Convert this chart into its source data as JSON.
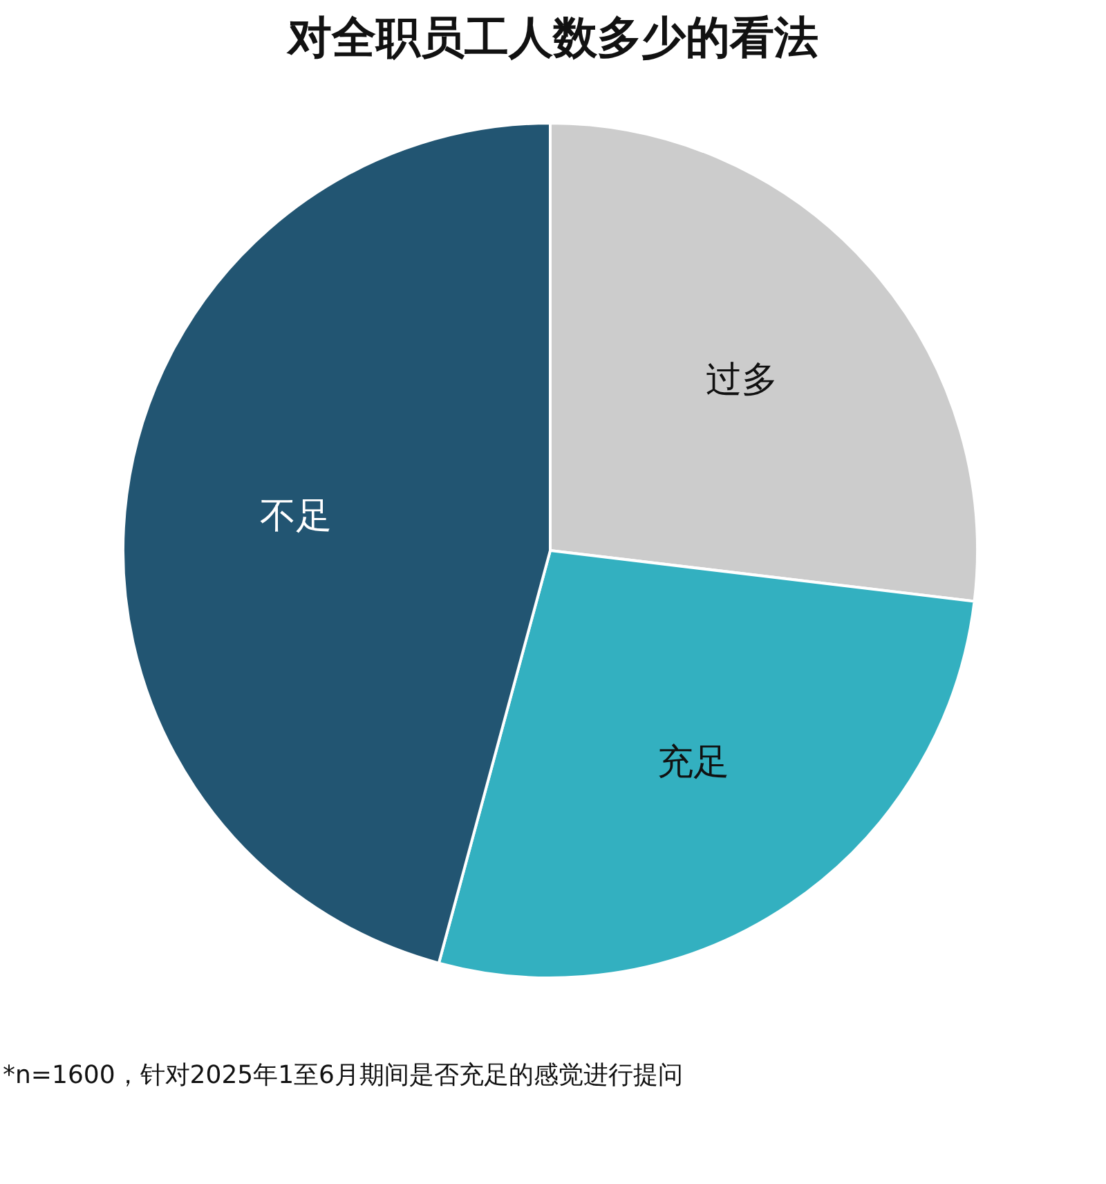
{
  "chart_data": {
    "type": "pie",
    "title": "对全职员工人数多少的看法",
    "categories": [
      "过多",
      "充足",
      "不足"
    ],
    "values": [
      26.9,
      27.3,
      45.8
    ],
    "colors": [
      "#cccccc",
      "#33b0c0",
      "#225572"
    ],
    "annotations": [
      "*n=1600，针对2025年1至6月期间是否充足的感觉进行提问"
    ]
  }
}
